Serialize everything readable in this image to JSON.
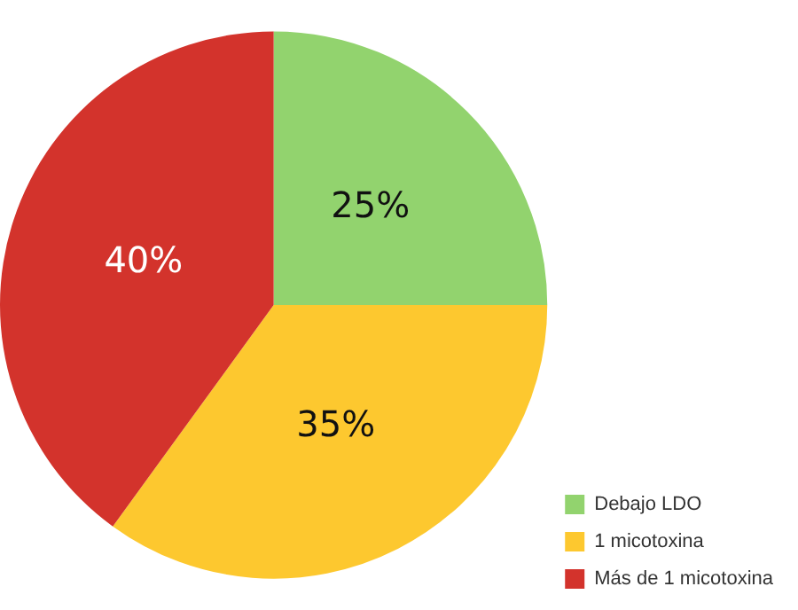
{
  "chart_data": {
    "type": "pie",
    "categories": [
      "Debajo LDO",
      "1 micotoxina",
      "Más de 1 micotoxina"
    ],
    "values": [
      25,
      35,
      40
    ],
    "colors": [
      "#92d36e",
      "#fdc82f",
      "#d3332c"
    ],
    "value_labels": [
      "25%",
      "35%",
      "40%"
    ],
    "legend": "bottom right"
  }
}
